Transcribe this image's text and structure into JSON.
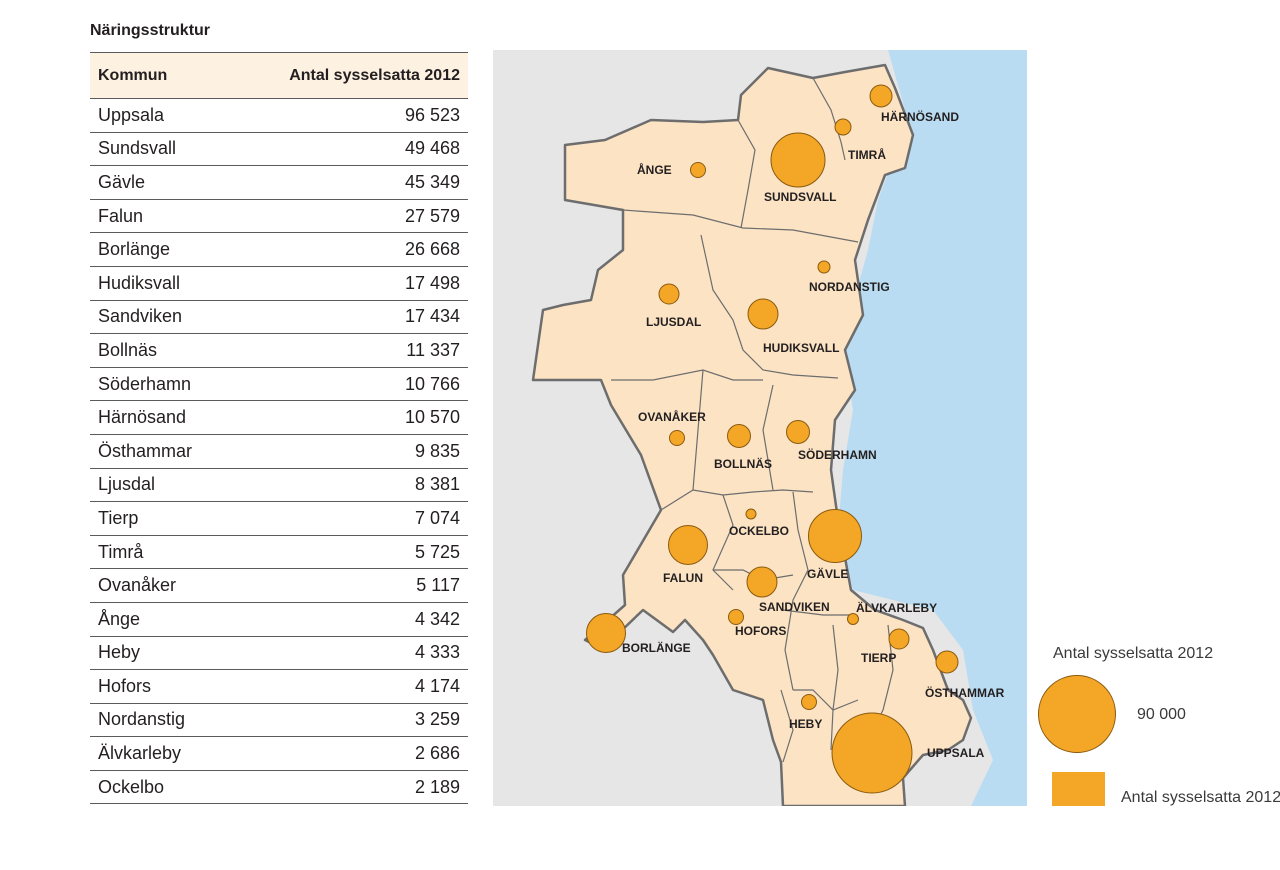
{
  "title": "Näringsstruktur",
  "table": {
    "headers": [
      "Kommun",
      "Antal sysselsatta 2012"
    ],
    "rows": [
      {
        "kommun": "Uppsala",
        "antal": "96 523"
      },
      {
        "kommun": "Sundsvall",
        "antal": "49 468"
      },
      {
        "kommun": "Gävle",
        "antal": "45 349"
      },
      {
        "kommun": "Falun",
        "antal": "27 579"
      },
      {
        "kommun": "Borlänge",
        "antal": "26 668"
      },
      {
        "kommun": "Hudiksvall",
        "antal": "17 498"
      },
      {
        "kommun": "Sandviken",
        "antal": "17 434"
      },
      {
        "kommun": "Bollnäs",
        "antal": "11 337"
      },
      {
        "kommun": "Söderhamn",
        "antal": "10 766"
      },
      {
        "kommun": "Härnösand",
        "antal": "10 570"
      },
      {
        "kommun": "Östhammar",
        "antal": "9 835"
      },
      {
        "kommun": "Ljusdal",
        "antal": "8 381"
      },
      {
        "kommun": "Tierp",
        "antal": "7 074"
      },
      {
        "kommun": "Timrå",
        "antal": "5 725"
      },
      {
        "kommun": "Ovanåker",
        "antal": "5 117"
      },
      {
        "kommun": "Ånge",
        "antal": "4 342"
      },
      {
        "kommun": "Heby",
        "antal": "4 333"
      },
      {
        "kommun": "Hofors",
        "antal": "4 174"
      },
      {
        "kommun": "Nordanstig",
        "antal": "3 259"
      },
      {
        "kommun": "Älvkarleby",
        "antal": "2 686"
      },
      {
        "kommun": "Ockelbo",
        "antal": "2 189"
      }
    ]
  },
  "map": {
    "labels": [
      "HÄRNÖSAND",
      "TIMRÅ",
      "ÅNGE",
      "SUNDSVALL",
      "NORDANSTIG",
      "LJUSDAL",
      "HUDIKSVALL",
      "OVANÅKER",
      "BOLLNÄS",
      "SÖDERHAMN",
      "OCKELBO",
      "FALUN",
      "GÄVLE",
      "SANDVIKEN",
      "ÄLVKARLEBY",
      "HOFORS",
      "BORLÄNGE",
      "TIERP",
      "ÖSTHAMMAR",
      "HEBY",
      "UPPSALA"
    ],
    "colors": {
      "sea": "#b9dcf2",
      "land_outside": "#e6e6e6",
      "region": "#fbe3c4",
      "circle": "#f4a626",
      "border": "#6d6d6d"
    }
  },
  "legend": {
    "title": "Antal sysselsatta 2012",
    "circle_value": "90 000",
    "rect_label": "Antal sysselsatta 2012"
  }
}
